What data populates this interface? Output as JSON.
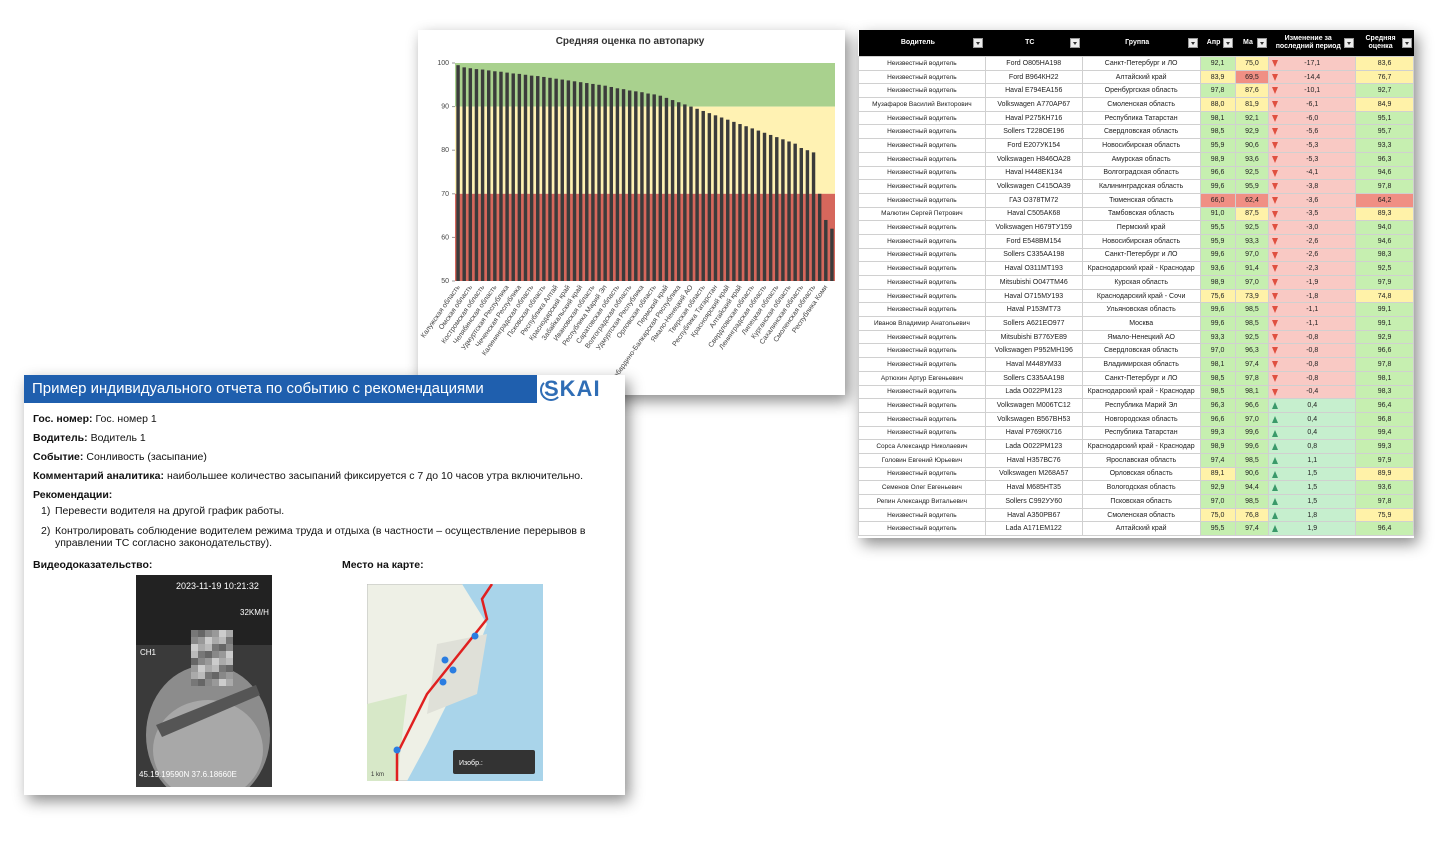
{
  "chart_data": {
    "type": "bar",
    "title": "Средняя оценка по автопарку",
    "categories": [
      "Калужская область",
      null,
      "Омская область",
      null,
      "Костромская область",
      null,
      "Челябинская область",
      null,
      "Удмуртская Республика",
      null,
      "Чеченская Республика",
      null,
      "Калининградская область",
      null,
      "Псковская область",
      null,
      "Республика Алтай",
      null,
      "Краснодарский край",
      null,
      "Забайкальский край",
      null,
      "Ивановская область",
      null,
      "Республика Марий Эл",
      null,
      "Саратовская область",
      null,
      "Волгоградская область",
      null,
      "Удмуртская Республика",
      null,
      "Орловская область",
      null,
      "Пермский край",
      null,
      "Кабардино-Балкарская Республика",
      null,
      "Ямало-Ненецкий АО",
      null,
      "Тверская область",
      null,
      "Республика Татарстан",
      null,
      "Красноярский край",
      null,
      "Алтайский край",
      null,
      "Свердловская область",
      null,
      "Ленинградская область",
      null,
      "Липецкая область",
      null,
      "Курганская область",
      null,
      "Сахалинская область",
      null,
      "Смоленская область",
      null,
      "Республика Коми",
      null
    ],
    "values": [
      99.5,
      99,
      98.8,
      98.6,
      98.5,
      98.3,
      98.1,
      98,
      97.8,
      97.6,
      97.5,
      97.3,
      97.1,
      97,
      96.8,
      96.6,
      96.4,
      96.2,
      96,
      95.8,
      95.6,
      95.4,
      95.2,
      95,
      94.8,
      94.5,
      94.2,
      94,
      93.7,
      93.5,
      93.3,
      93,
      92.8,
      92.5,
      92,
      91.5,
      91,
      90.5,
      90,
      89.5,
      89,
      88.5,
      88,
      87.5,
      87,
      86.5,
      86,
      85.5,
      85,
      84.5,
      84,
      83.5,
      83,
      82.5,
      82,
      81.5,
      80.5,
      80,
      79.5,
      70,
      64,
      62
    ],
    "color": "#3b3b3b",
    "ylim": [
      50,
      100
    ],
    "yticks": [
      50,
      60,
      70,
      80,
      90,
      100
    ],
    "bands": [
      {
        "from": 90,
        "to": 100,
        "color": "#a9d18e"
      },
      {
        "from": 70,
        "to": 90,
        "color": "#fff2b3"
      },
      {
        "from": 50,
        "to": 70,
        "color": "#d6675c"
      }
    ]
  },
  "table": {
    "headers": [
      "Водитель",
      "ТС",
      "Группа",
      "Апр",
      "Ма",
      "Изменение за последний период",
      "Средняя оценка"
    ],
    "rows": [
      [
        "Неизвестный водитель",
        "Ford О805НА198",
        "Санкт-Петербург и ЛО",
        "92,1",
        "75,0",
        "-17,1",
        "83,6"
      ],
      [
        "Неизвестный водитель",
        "Ford В964КН22",
        "Алтайский край",
        "83,9",
        "69,5",
        "-14,4",
        "76,7"
      ],
      [
        "Неизвестный водитель",
        "Haval Е794ЕА156",
        "Оренбургская область",
        "97,8",
        "87,6",
        "-10,1",
        "92,7"
      ],
      [
        "Музафаров Василий Викторович",
        "Volkswagen А770АР67",
        "Смоленская область",
        "88,0",
        "81,9",
        "-6,1",
        "84,9"
      ],
      [
        "Неизвестный водитель",
        "Haval Р275КН716",
        "Республика Татарстан",
        "98,1",
        "92,1",
        "-6,0",
        "95,1"
      ],
      [
        "Неизвестный водитель",
        "Sollers Т228ОЕ196",
        "Свердловская область",
        "98,5",
        "92,9",
        "-5,6",
        "95,7"
      ],
      [
        "Неизвестный водитель",
        "Ford Е207УК154",
        "Новосибирская область",
        "95,9",
        "90,6",
        "-5,3",
        "93,3"
      ],
      [
        "Неизвестный водитель",
        "Volkswagen Н846ОА28",
        "Амурская область",
        "98,9",
        "93,6",
        "-5,3",
        "96,3"
      ],
      [
        "Неизвестный водитель",
        "Haval Н448ЕК134",
        "Волгоградская область",
        "96,6",
        "92,5",
        "-4,1",
        "94,6"
      ],
      [
        "Неизвестный водитель",
        "Volkswagen С415ОА39",
        "Калининградская область",
        "99,6",
        "95,9",
        "-3,8",
        "97,8"
      ],
      [
        "Неизвестный водитель",
        "ГАЗ О378ТМ72",
        "Тюменская область",
        "66,0",
        "62,4",
        "-3,6",
        "64,2"
      ],
      [
        "Малютин Сергей Петрович",
        "Haval С505АК68",
        "Тамбовская область",
        "91,0",
        "87,5",
        "-3,5",
        "89,3"
      ],
      [
        "Неизвестный водитель",
        "Volkswagen Н679ТУ159",
        "Пермский край",
        "95,5",
        "92,5",
        "-3,0",
        "94,0"
      ],
      [
        "Неизвестный водитель",
        "Ford Е548ВМ154",
        "Новосибирская область",
        "95,9",
        "93,3",
        "-2,6",
        "94,6"
      ],
      [
        "Неизвестный водитель",
        "Sollers С335АА198",
        "Санкт-Петербург и ЛО",
        "99,6",
        "97,0",
        "-2,6",
        "98,3"
      ],
      [
        "Неизвестный водитель",
        "Haval О311МТ193",
        "Краснодарский край - Краснодар",
        "93,6",
        "91,4",
        "-2,3",
        "92,5"
      ],
      [
        "Неизвестный водитель",
        "Mitsubishi О047ТМ46",
        "Курская область",
        "98,9",
        "97,0",
        "-1,9",
        "97,9"
      ],
      [
        "Неизвестный водитель",
        "Haval О715МУ193",
        "Краснодарский край - Сочи",
        "75,6",
        "73,9",
        "-1,8",
        "74,8"
      ],
      [
        "Неизвестный водитель",
        "Haval Р153МТ73",
        "Ульяновская область",
        "99,6",
        "98,5",
        "-1,1",
        "99,1"
      ],
      [
        "Иванов Владимир Анатольевич",
        "Sollers А621ЕО977",
        "Москва",
        "99,6",
        "98,5",
        "-1,1",
        "99,1"
      ],
      [
        "Неизвестный водитель",
        "Mitsubishi В776УЕ89",
        "Ямало-Ненецкий АО",
        "93,3",
        "92,5",
        "-0,8",
        "92,9"
      ],
      [
        "Неизвестный водитель",
        "Volkswagen Р952МН196",
        "Свердловская область",
        "97,0",
        "96,3",
        "-0,8",
        "96,6"
      ],
      [
        "Неизвестный водитель",
        "Haval М448УМ33",
        "Владимирская область",
        "98,1",
        "97,4",
        "-0,8",
        "97,8"
      ],
      [
        "Артюхин Артур Евгеньевич",
        "Sollers С335АА198",
        "Санкт-Петербург и ЛО",
        "98,5",
        "97,8",
        "-0,8",
        "98,1"
      ],
      [
        "Неизвестный водитель",
        "Lada О022РМ123",
        "Краснодарский край - Краснодар",
        "98,5",
        "98,1",
        "-0,4",
        "98,3"
      ],
      [
        "Неизвестный водитель",
        "Volkswagen М006ТС12",
        "Республика Марий Эл",
        "96,3",
        "96,6",
        "0,4",
        "96,4"
      ],
      [
        "Неизвестный водитель",
        "Volkswagen В567ВН53",
        "Новгородская область",
        "96,6",
        "97,0",
        "0,4",
        "96,8"
      ],
      [
        "Неизвестный водитель",
        "Haval Р769КК716",
        "Республика Татарстан",
        "99,3",
        "99,6",
        "0,4",
        "99,4"
      ],
      [
        "Сорса Александр Николаевич",
        "Lada О022РМ123",
        "Краснодарский край - Краснодар",
        "98,9",
        "99,6",
        "0,8",
        "99,3"
      ],
      [
        "Головин Евгений Юрьевич",
        "Haval Н357ВС76",
        "Ярославская область",
        "97,4",
        "98,5",
        "1,1",
        "97,9"
      ],
      [
        "Неизвестный водитель",
        "Volkswagen М268А57",
        "Орловская область",
        "89,1",
        "90,6",
        "1,5",
        "89,9"
      ],
      [
        "Семенов Олег Евгеньевич",
        "Haval М685НТ35",
        "Вологодская область",
        "92,9",
        "94,4",
        "1,5",
        "93,6"
      ],
      [
        "Репин Александр Витальевич",
        "Sollers С992УУ60",
        "Псковская область",
        "97,0",
        "98,5",
        "1,5",
        "97,8"
      ],
      [
        "Неизвестный водитель",
        "Haval А350РВ67",
        "Смоленская область",
        "75,0",
        "76,8",
        "1,8",
        "75,9"
      ],
      [
        "Неизвестный водитель",
        "Lada А171ЕМ122",
        "Алтайский край",
        "95,5",
        "97,4",
        "1,9",
        "96,4"
      ]
    ]
  },
  "report": {
    "title": "Пример индивидуального отчета по событию с рекомендациями",
    "logo": "SKAI",
    "fields": [
      {
        "label": "Гос. номер:",
        "value": "Гос. номер 1"
      },
      {
        "label": "Водитель:",
        "value": "Водитель 1"
      },
      {
        "label": "Событие:",
        "value": "Сонливость (засыпание)"
      },
      {
        "label": "Комментарий аналитика:",
        "value": "наибольшее количество засыпаний фиксируется с 7 до 10 часов утра включительно."
      }
    ],
    "recommendations_label": "Рекомендации:",
    "recommendations": [
      {
        "marker": "1)",
        "text": "Перевести водителя на другой график работы."
      },
      {
        "marker": "2)",
        "text": "Контролировать соблюдение водителем режима труда и отдыха (в частности – осуществление перерывов в управлении ТС согласно законодательству)."
      }
    ],
    "video_label": "Видеодоказательство:",
    "map_label": "Место на карте:",
    "video": {
      "timestamp": "2023-11-19 10:21:32",
      "speed": "32KM/H",
      "channel": "CH1",
      "coords": "45.19.19590N 37.6.18660E"
    },
    "map": {
      "scale": "1 km",
      "imagery": "Изобр.:"
    }
  }
}
